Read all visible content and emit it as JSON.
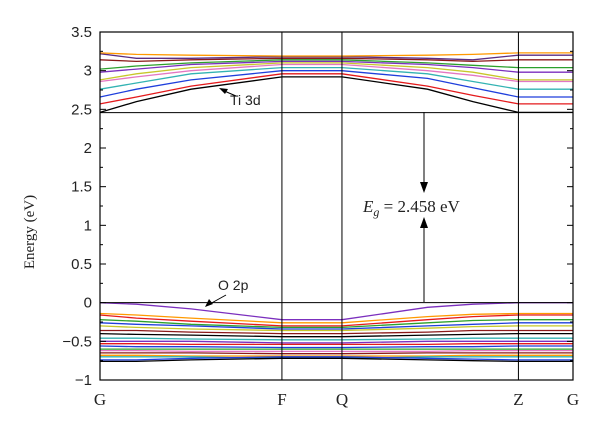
{
  "chart_data": {
    "type": "line",
    "ylabel": "Energy (eV)",
    "ylim": [
      -1,
      3.5
    ],
    "yticks": [
      -1,
      -0.5,
      0,
      0.5,
      1,
      1.5,
      2,
      2.5,
      3,
      3.5
    ],
    "ytick_labels": [
      "−1",
      "−0.5",
      "0",
      "0.5",
      "1",
      "1.5",
      "2",
      "2.5",
      "3",
      "3.5"
    ],
    "kpoints": [
      {
        "label": "G",
        "x": 0
      },
      {
        "label": "F",
        "x": 1
      },
      {
        "label": "Q",
        "x": 1.33
      },
      {
        "label": "Z",
        "x": 2.3
      },
      {
        "label": "G",
        "x": 2.6
      }
    ],
    "x": [
      0,
      0.2,
      0.5,
      1,
      1.33,
      1.8,
      2.05,
      2.3,
      2.6
    ],
    "hlines": [
      0,
      2.458
    ],
    "annotations": {
      "cb_label": "Ti 3d",
      "vb_label": "O 2p",
      "gap_symbol": "E",
      "gap_subscript": "g",
      "gap_rest": " = 2.458 eV"
    },
    "series": [
      {
        "color": "#000000",
        "values": [
          2.46,
          2.6,
          2.76,
          2.92,
          2.92,
          2.76,
          2.6,
          2.46,
          2.46
        ]
      },
      {
        "color": "#e41a1c",
        "values": [
          2.57,
          2.66,
          2.8,
          2.96,
          2.96,
          2.8,
          2.68,
          2.57,
          2.57
        ]
      },
      {
        "color": "#1f3fdc",
        "values": [
          2.66,
          2.76,
          2.88,
          3.0,
          3.0,
          2.9,
          2.78,
          2.66,
          2.66
        ]
      },
      {
        "color": "#33b3b3",
        "values": [
          2.76,
          2.84,
          2.96,
          3.04,
          3.04,
          2.96,
          2.86,
          2.76,
          2.76
        ]
      },
      {
        "color": "#e377c2",
        "values": [
          2.86,
          2.92,
          3.0,
          3.08,
          3.08,
          3.0,
          2.94,
          2.86,
          2.86
        ]
      },
      {
        "color": "#c7c72a",
        "values": [
          2.88,
          2.96,
          3.04,
          3.1,
          3.1,
          3.04,
          2.98,
          2.88,
          2.88
        ]
      },
      {
        "color": "#7b2fbe",
        "values": [
          2.98,
          3.02,
          3.08,
          3.12,
          3.12,
          3.08,
          3.04,
          2.98,
          2.98
        ]
      },
      {
        "color": "#2ca02c",
        "values": [
          3.02,
          3.06,
          3.1,
          3.14,
          3.14,
          3.1,
          3.07,
          3.04,
          3.04
        ]
      },
      {
        "color": "#8b1a1a",
        "values": [
          3.14,
          3.12,
          3.14,
          3.16,
          3.16,
          3.14,
          3.12,
          3.14,
          3.14
        ]
      },
      {
        "color": "#5a2d82",
        "values": [
          3.22,
          3.16,
          3.16,
          3.18,
          3.18,
          3.16,
          3.14,
          3.2,
          3.2
        ]
      },
      {
        "color": "#ff9900",
        "values": [
          3.23,
          3.21,
          3.2,
          3.19,
          3.19,
          3.2,
          3.21,
          3.23,
          3.23
        ]
      },
      {
        "color": "#7b2fbe",
        "values": [
          0.0,
          -0.02,
          -0.08,
          -0.22,
          -0.22,
          -0.06,
          -0.02,
          0.0,
          0.0
        ]
      },
      {
        "color": "#ff9900",
        "values": [
          -0.14,
          -0.16,
          -0.2,
          -0.26,
          -0.26,
          -0.18,
          -0.15,
          -0.14,
          -0.14
        ]
      },
      {
        "color": "#e41a1c",
        "values": [
          -0.16,
          -0.2,
          -0.24,
          -0.3,
          -0.3,
          -0.22,
          -0.18,
          -0.16,
          -0.16
        ]
      },
      {
        "color": "#2ca02c",
        "values": [
          -0.22,
          -0.24,
          -0.28,
          -0.32,
          -0.32,
          -0.26,
          -0.23,
          -0.22,
          -0.22
        ]
      },
      {
        "color": "#1f3fdc",
        "values": [
          -0.26,
          -0.28,
          -0.3,
          -0.34,
          -0.34,
          -0.3,
          -0.28,
          -0.26,
          -0.26
        ]
      },
      {
        "color": "#c7c72a",
        "values": [
          -0.3,
          -0.32,
          -0.34,
          -0.36,
          -0.36,
          -0.33,
          -0.31,
          -0.3,
          -0.3
        ]
      },
      {
        "color": "#8b1a1a",
        "values": [
          -0.36,
          -0.36,
          -0.38,
          -0.4,
          -0.4,
          -0.38,
          -0.36,
          -0.36,
          -0.36
        ]
      },
      {
        "color": "#000000",
        "values": [
          -0.4,
          -0.41,
          -0.42,
          -0.44,
          -0.44,
          -0.42,
          -0.41,
          -0.4,
          -0.4
        ]
      },
      {
        "color": "#33b3b3",
        "values": [
          -0.46,
          -0.46,
          -0.47,
          -0.48,
          -0.48,
          -0.47,
          -0.46,
          -0.46,
          -0.46
        ]
      },
      {
        "color": "#7b2fbe",
        "values": [
          -0.5,
          -0.5,
          -0.5,
          -0.52,
          -0.52,
          -0.5,
          -0.5,
          -0.5,
          -0.5
        ]
      },
      {
        "color": "#e41a1c",
        "values": [
          -0.53,
          -0.53,
          -0.54,
          -0.54,
          -0.54,
          -0.54,
          -0.53,
          -0.53,
          -0.53
        ]
      },
      {
        "color": "#1f3fdc",
        "values": [
          -0.56,
          -0.57,
          -0.57,
          -0.58,
          -0.58,
          -0.57,
          -0.57,
          -0.56,
          -0.56
        ]
      },
      {
        "color": "#2ca02c",
        "values": [
          -0.6,
          -0.6,
          -0.6,
          -0.6,
          -0.6,
          -0.6,
          -0.6,
          -0.6,
          -0.6
        ]
      },
      {
        "color": "#e377c2",
        "values": [
          -0.62,
          -0.62,
          -0.63,
          -0.63,
          -0.63,
          -0.63,
          -0.62,
          -0.62,
          -0.62
        ]
      },
      {
        "color": "#8b1a1a",
        "values": [
          -0.65,
          -0.65,
          -0.65,
          -0.66,
          -0.66,
          -0.65,
          -0.65,
          -0.65,
          -0.65
        ]
      },
      {
        "color": "#ff9900",
        "values": [
          -0.68,
          -0.68,
          -0.69,
          -0.69,
          -0.69,
          -0.69,
          -0.68,
          -0.68,
          -0.68
        ]
      },
      {
        "color": "#33b3b3",
        "values": [
          -0.7,
          -0.7,
          -0.7,
          -0.72,
          -0.72,
          -0.7,
          -0.7,
          -0.7,
          -0.7
        ]
      },
      {
        "color": "#1f3fdc",
        "values": [
          -0.74,
          -0.74,
          -0.72,
          -0.7,
          -0.7,
          -0.72,
          -0.73,
          -0.74,
          -0.74
        ]
      },
      {
        "color": "#000000",
        "values": [
          -0.76,
          -0.76,
          -0.74,
          -0.72,
          -0.72,
          -0.74,
          -0.75,
          -0.76,
          -0.76
        ]
      }
    ]
  }
}
